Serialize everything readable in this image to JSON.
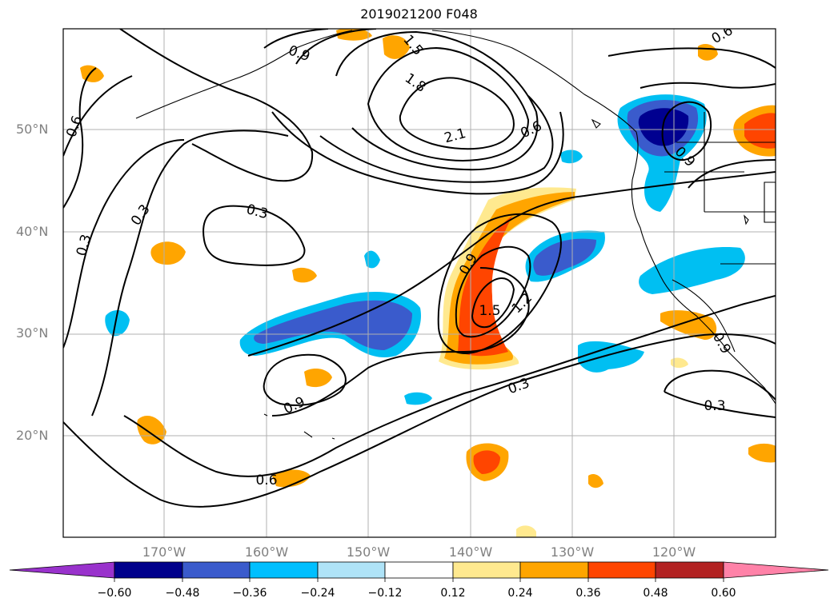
{
  "map": {
    "title": "2019021200 F048",
    "lat_labels": [
      "50°N",
      "40°N",
      "30°N",
      "20°N"
    ],
    "lon_labels": [
      "170°W",
      "160°W",
      "150°W",
      "140°W",
      "130°W",
      "120°W"
    ],
    "contour_labels": [
      "0.6",
      "0.9",
      "1.5",
      "1.8",
      "2.1",
      "0.6",
      "0.3",
      "0.3",
      "0.3",
      "0.9",
      "1.5",
      "1.2",
      "0.9",
      "0.3",
      "0.3",
      "0.9",
      "0.6",
      "0.9",
      "0.6"
    ],
    "shading_colors": {
      "neg_060": "#000090",
      "neg_048": "#3a5bcc",
      "neg_036": "#00bff2",
      "neg_024": "#afe3f7",
      "pos_024": "#ffe98f",
      "pos_036": "#ffa200",
      "pos_048": "#ff4500",
      "pos_060": "#b22222"
    }
  },
  "colorbar": {
    "ticks": [
      "−0.60",
      "−0.48",
      "−0.36",
      "−0.24",
      "−0.12",
      "0.12",
      "0.24",
      "0.36",
      "0.48",
      "0.60"
    ],
    "colors": [
      "#9932cc",
      "#00008b",
      "#3a5bcc",
      "#00bfff",
      "#afe3f7",
      "#ffffff",
      "#ffe98f",
      "#ffa500",
      "#ff4500",
      "#b22222",
      "#ff82a8"
    ]
  }
}
